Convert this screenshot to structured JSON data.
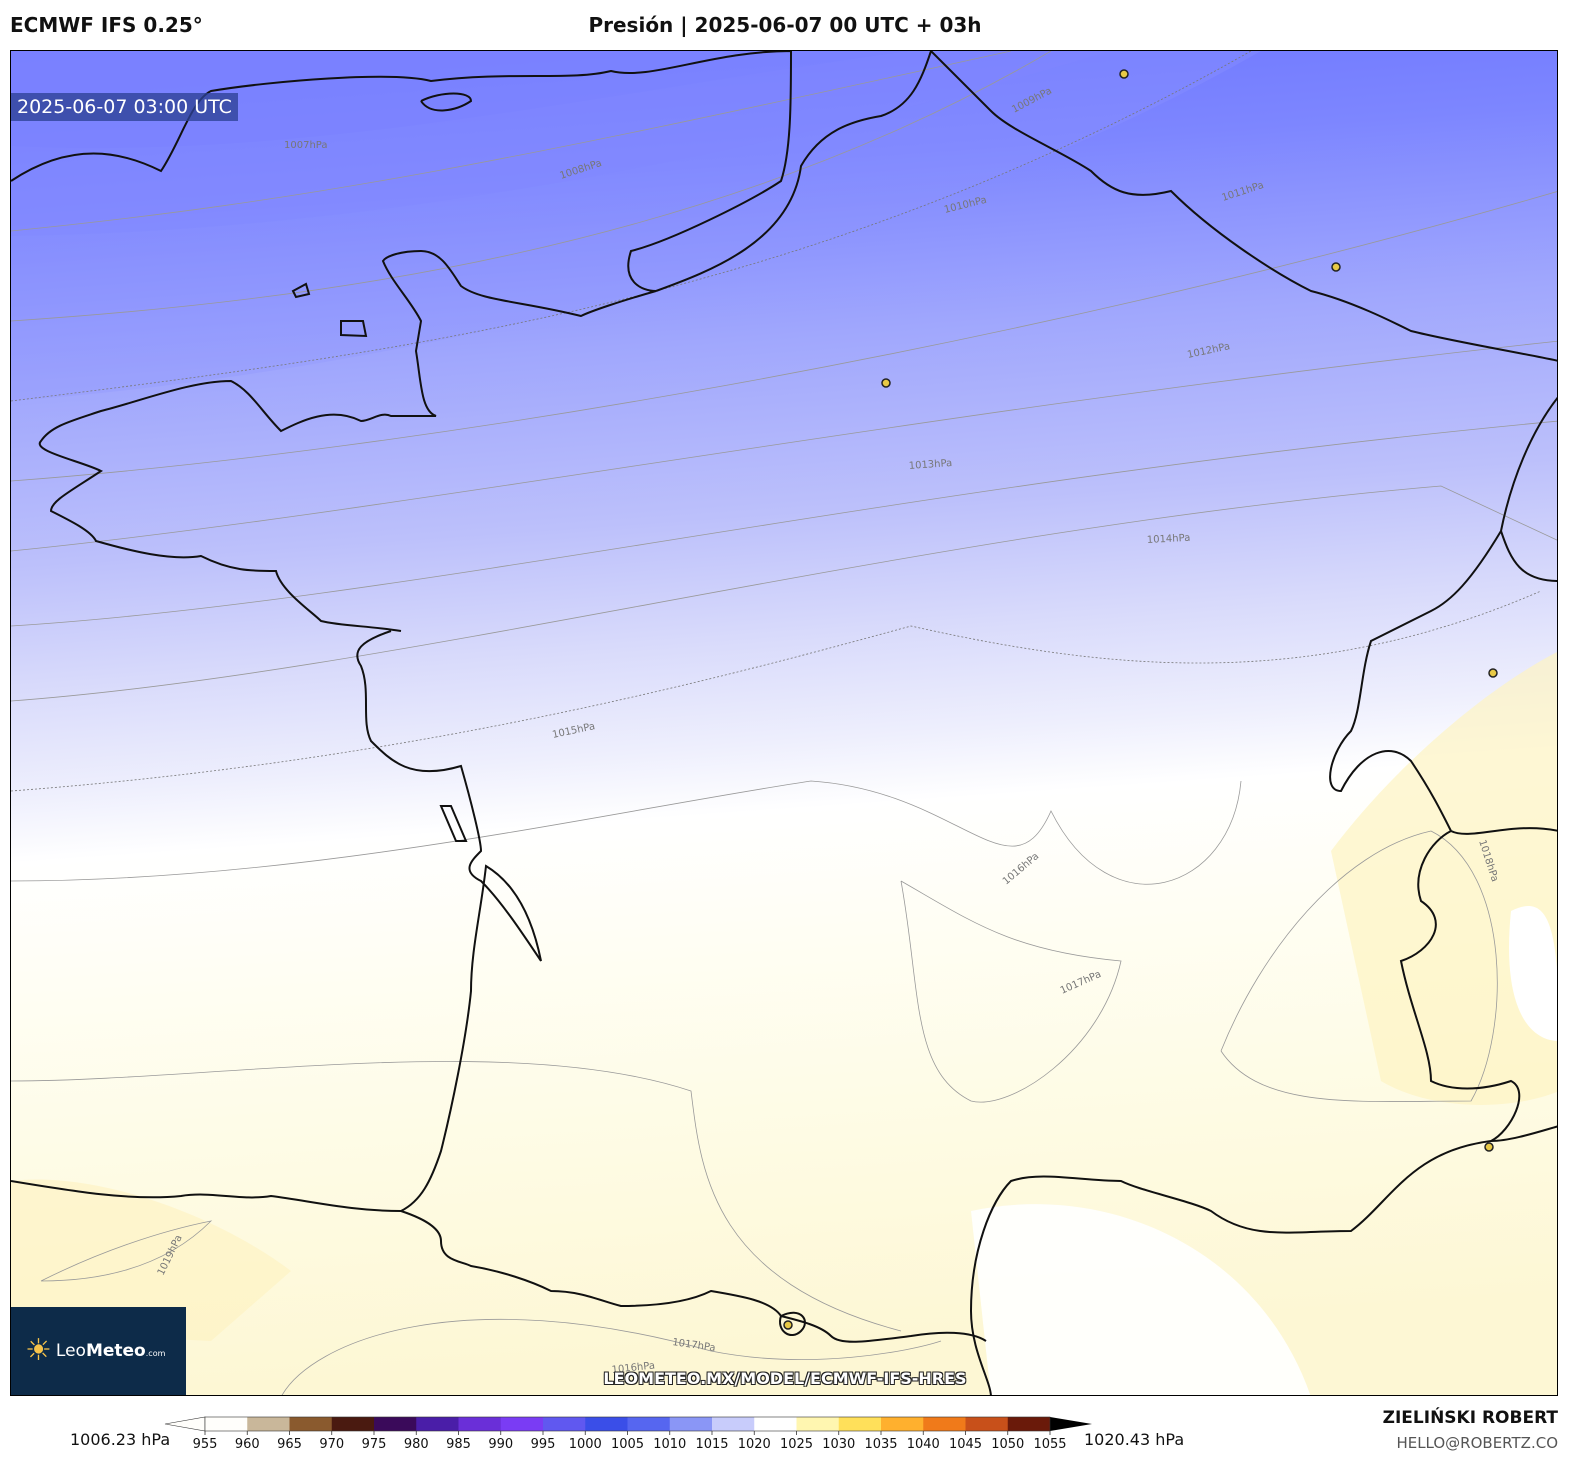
{
  "header": {
    "model": "ECMWF IFS 0.25°",
    "title": "Presión | 2025-06-07 00 UTC + 03h"
  },
  "map": {
    "timestamp": "2025-06-07 03:00 UTC",
    "watermark": "LEOMETEO.MX/MODEL/ECMWF-IFS-HRES",
    "logo": {
      "brand_light": "Leo",
      "brand_bold": "Meteo",
      "brand_suffix": ".com",
      "icon": "sun-icon"
    },
    "isobar_labels": [
      "1007hPa",
      "1008hPa",
      "1009hPa",
      "1010hPa",
      "1011hPa",
      "1012hPa",
      "1013hPa",
      "1014hPa",
      "1015hPa",
      "1016hPa",
      "1017hPa",
      "1018hPa",
      "1019hPa",
      "1016hPa",
      "1017hPa"
    ],
    "colors": {
      "low_deep": "#6b74ff",
      "mid": "#a6acff",
      "light": "#dcdefb",
      "neutral": "#ffffff",
      "high_light": "#fefbe6",
      "high": "#fdf3c2",
      "city": "#e8c946",
      "coast": "#111111"
    }
  },
  "colorbar": {
    "min_label": "1006.23 hPa",
    "max_label": "1020.43 hPa",
    "ticks": [
      "955",
      "960",
      "965",
      "970",
      "975",
      "980",
      "985",
      "990",
      "995",
      "1000",
      "1005",
      "1010",
      "1015",
      "1020",
      "1025",
      "1030",
      "1035",
      "1040",
      "1045",
      "1050",
      "1055"
    ],
    "stops": [
      "#fffefb",
      "#c9b79a",
      "#8a5a2e",
      "#4a1a10",
      "#3a0a5a",
      "#4a1ea8",
      "#6a2fd8",
      "#7a3cf4",
      "#6058f0",
      "#3a4ee8",
      "#5666f0",
      "#8a96f6",
      "#c8ccfb",
      "#ffffff",
      "#fff6b0",
      "#ffe05a",
      "#ffb02e",
      "#f07a1a",
      "#c8501a",
      "#6a1a0a",
      "#000000"
    ]
  },
  "footer": {
    "author": "ZIELIŃSKI ROBERT",
    "email": "HELLO@ROBERTZ.CO"
  }
}
